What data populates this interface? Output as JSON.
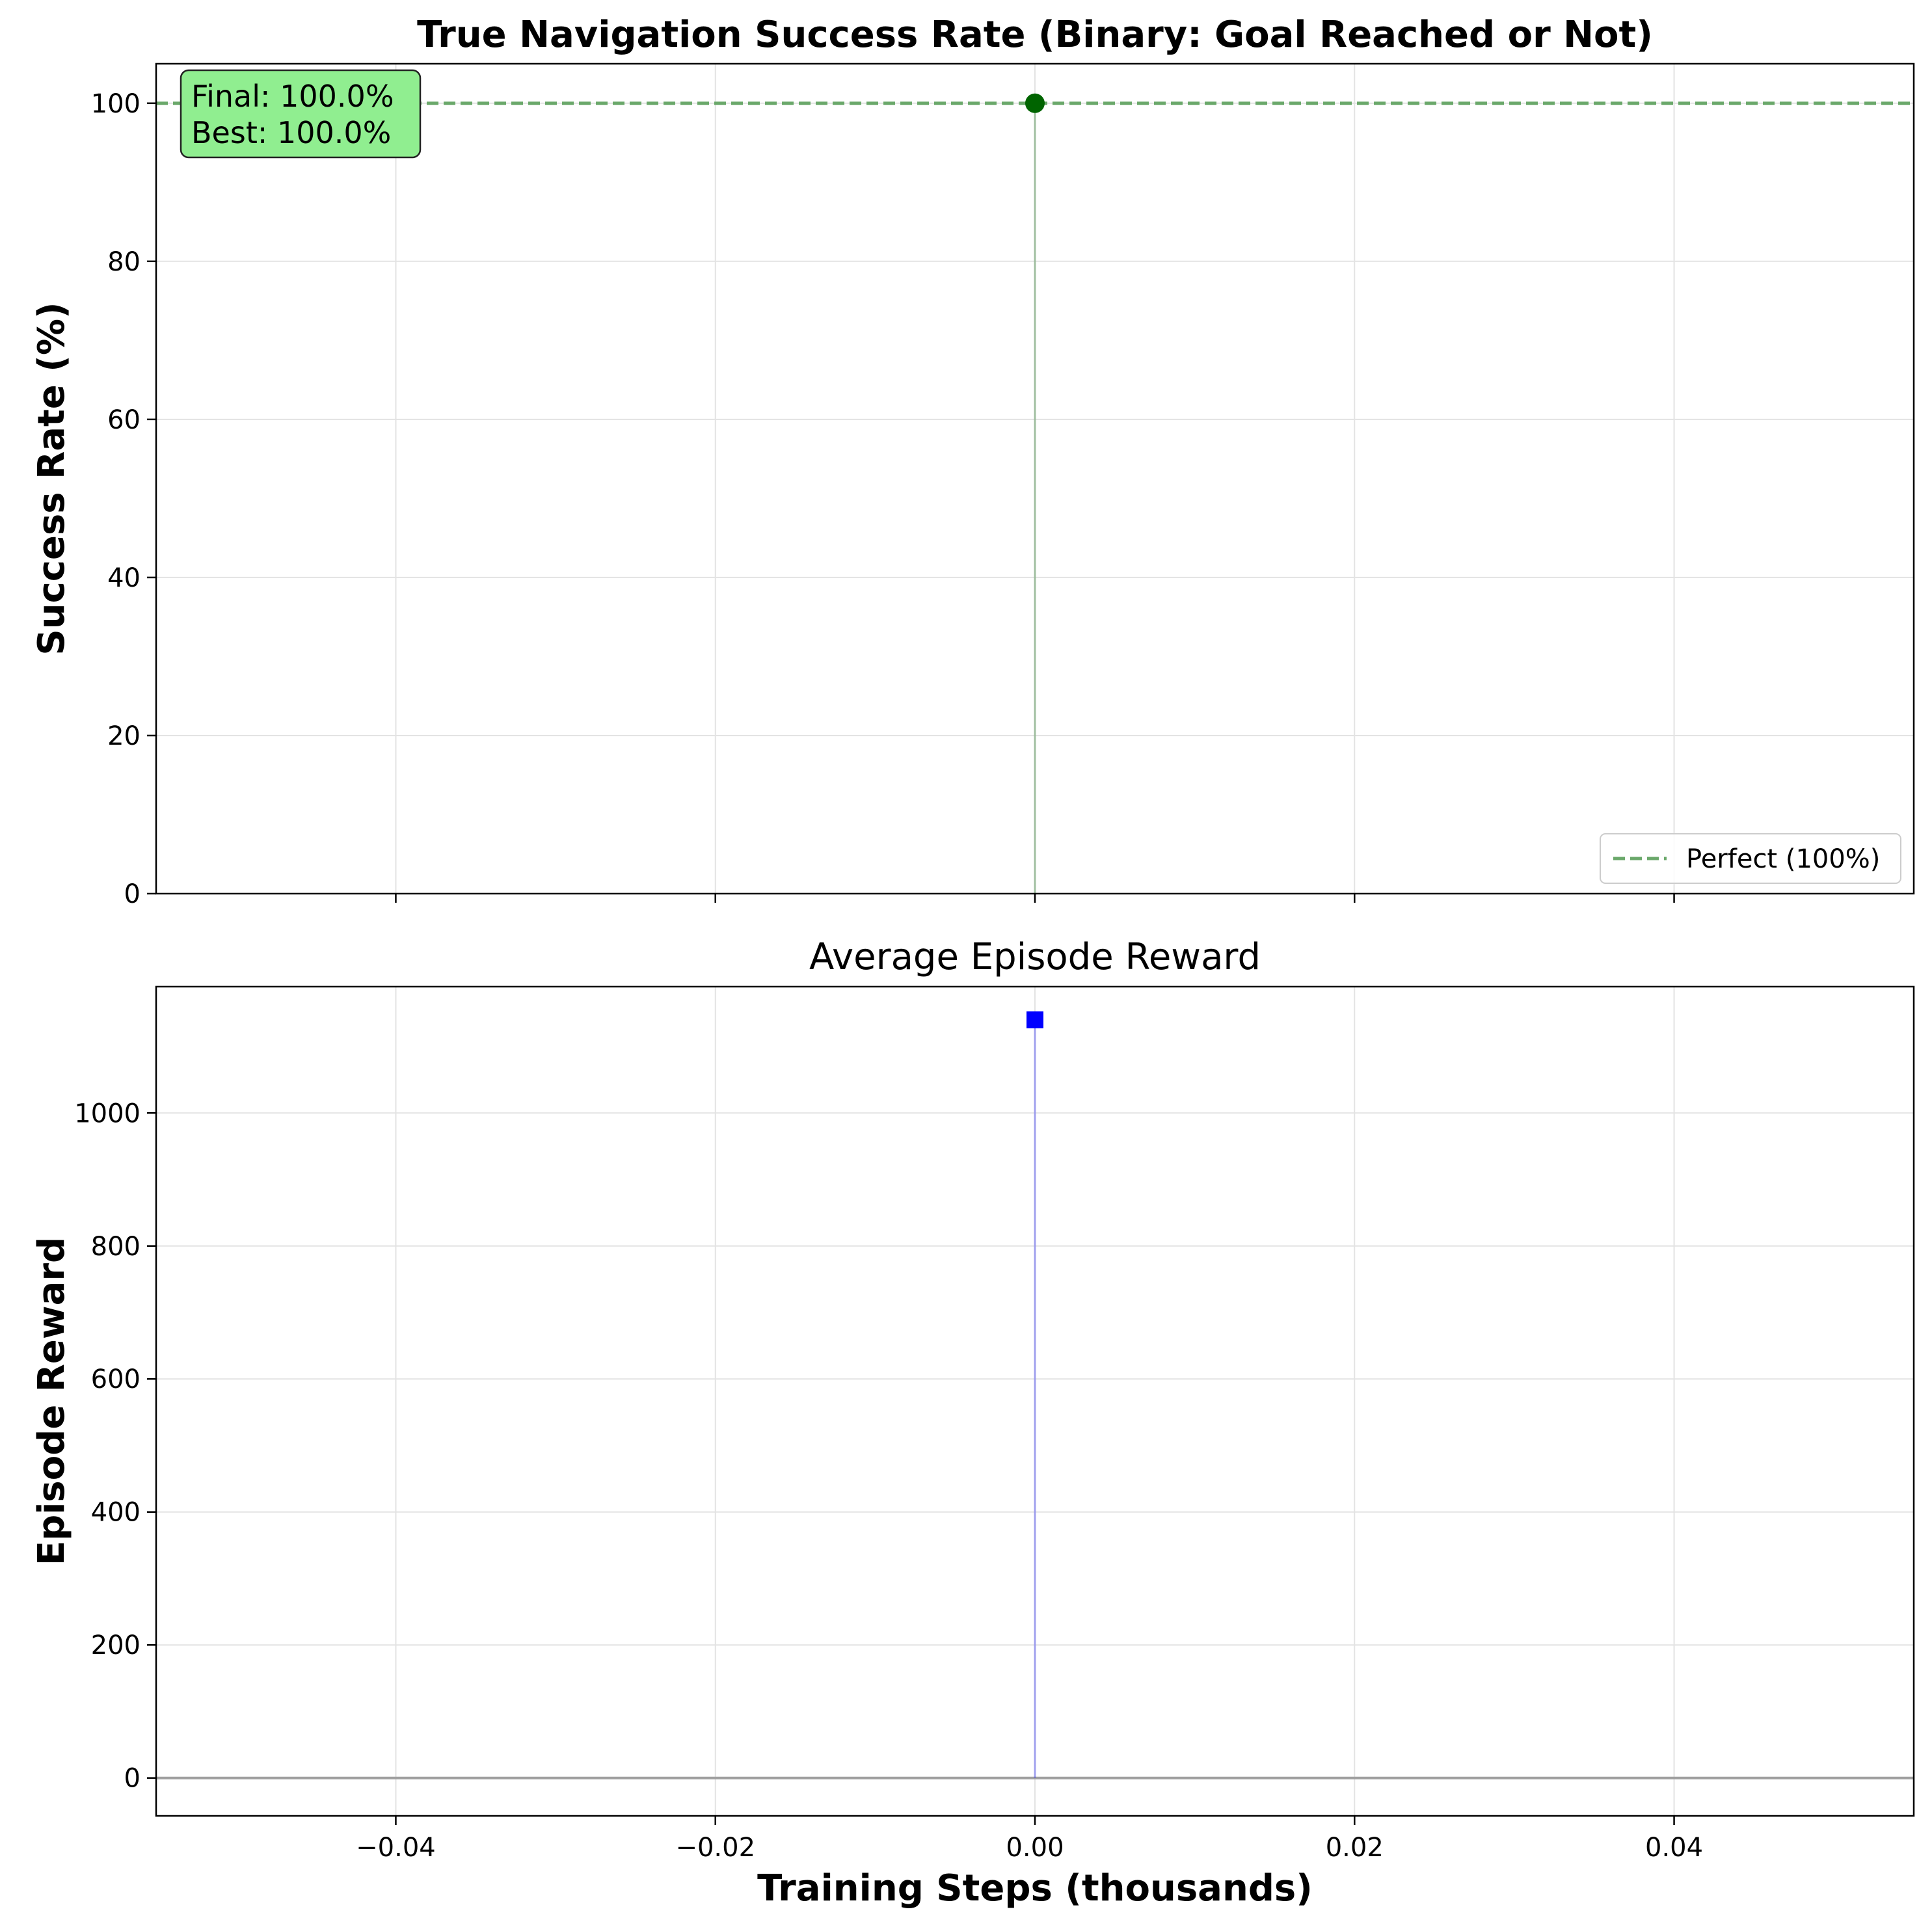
{
  "chart_data": [
    {
      "type": "line",
      "title": "True Navigation Success Rate (Binary: Goal Reached or Not)",
      "xlabel": "",
      "ylabel": "Success Rate (%)",
      "xlim": [
        -0.055,
        0.055
      ],
      "ylim": [
        0,
        105
      ],
      "xticks": [
        -0.04,
        -0.02,
        0.0,
        0.02,
        0.04
      ],
      "xtick_labels": [
        "",
        "",
        "",
        "",
        ""
      ],
      "yticks": [
        0,
        20,
        40,
        60,
        80,
        100
      ],
      "ytick_labels": [
        "0",
        "20",
        "40",
        "60",
        "80",
        "100"
      ],
      "grid": true,
      "series": [
        {
          "name": "",
          "x": [
            0.0
          ],
          "y": [
            100.0
          ],
          "marker": "circle",
          "color": "#006400"
        }
      ],
      "reference_line": {
        "y": 100,
        "label": "Perfect (100%)",
        "style": "dashed",
        "color": "#6aa86a"
      },
      "annotation": {
        "lines": [
          "Final: 100.0%",
          "Best: 100.0%"
        ],
        "position": "top-left",
        "background": "#90ee90"
      },
      "legend": {
        "entries": [
          "Perfect (100%)"
        ],
        "placement": "lower-right"
      }
    },
    {
      "type": "line",
      "title": "Average Episode Reward",
      "xlabel": "Training Steps (thousands)",
      "ylabel": "Episode Reward",
      "xlim": [
        -0.055,
        0.055
      ],
      "ylim": [
        -57,
        1190
      ],
      "xticks": [
        -0.04,
        -0.02,
        0.0,
        0.02,
        0.04
      ],
      "xtick_labels": [
        "−0.04",
        "−0.02",
        "0.00",
        "0.02",
        "0.04"
      ],
      "yticks": [
        0,
        200,
        400,
        600,
        800,
        1000
      ],
      "ytick_labels": [
        "0",
        "200",
        "400",
        "600",
        "800",
        "1000"
      ],
      "grid": true,
      "series": [
        {
          "name": "",
          "x": [
            0.0
          ],
          "y": [
            1140
          ],
          "marker": "square",
          "color": "#0000ff"
        }
      ],
      "reference_line": {
        "y": 0,
        "label": "",
        "style": "solid",
        "color": "#a0a0a0"
      }
    }
  ]
}
